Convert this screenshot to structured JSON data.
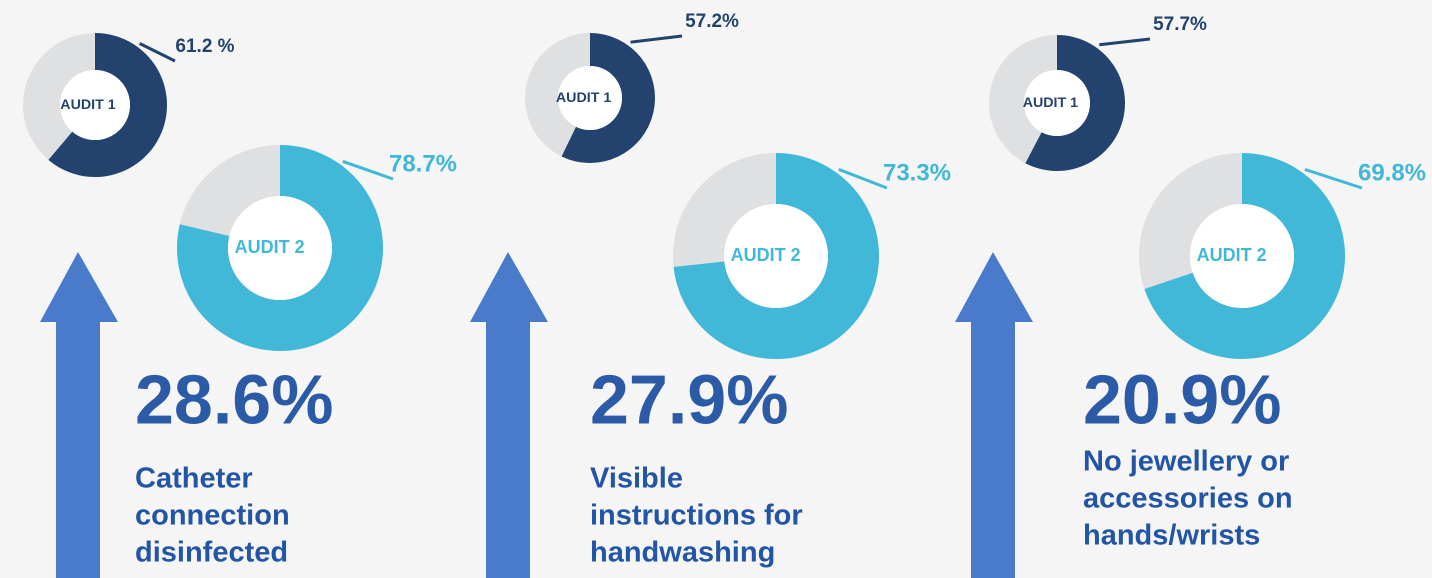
{
  "chart_data": [
    {
      "type": "pie",
      "title": "AUDIT 1",
      "values": [
        61.2
      ],
      "value_labels": [
        "61.2 %"
      ],
      "color": "#23436e"
    },
    {
      "type": "pie",
      "title": "AUDIT 2",
      "values": [
        78.7
      ],
      "value_labels": [
        "78.7%"
      ],
      "color": "#41b8d8"
    },
    {
      "type": "pie",
      "title": "AUDIT 1",
      "values": [
        57.2
      ],
      "value_labels": [
        "57.2%"
      ],
      "color": "#23436e"
    },
    {
      "type": "pie",
      "title": "AUDIT 2",
      "values": [
        73.3
      ],
      "value_labels": [
        "73.3%"
      ],
      "color": "#41b8d8"
    },
    {
      "type": "pie",
      "title": "AUDIT 1",
      "values": [
        57.7
      ],
      "value_labels": [
        "57.7%"
      ],
      "color": "#23436e"
    },
    {
      "type": "pie",
      "title": "AUDIT 2",
      "values": [
        69.8
      ],
      "value_labels": [
        "69.8%"
      ],
      "color": "#41b8d8"
    }
  ],
  "highlights": [
    {
      "increase": "28.6%",
      "description": [
        "Catheter",
        "connection",
        "disinfected"
      ]
    },
    {
      "increase": "27.9%",
      "description": [
        "Visible",
        "instructions for",
        "handwashing"
      ]
    },
    {
      "increase": "20.9%",
      "description": [
        "No jewellery or",
        "accessories on",
        "hands/wrists"
      ]
    }
  ]
}
